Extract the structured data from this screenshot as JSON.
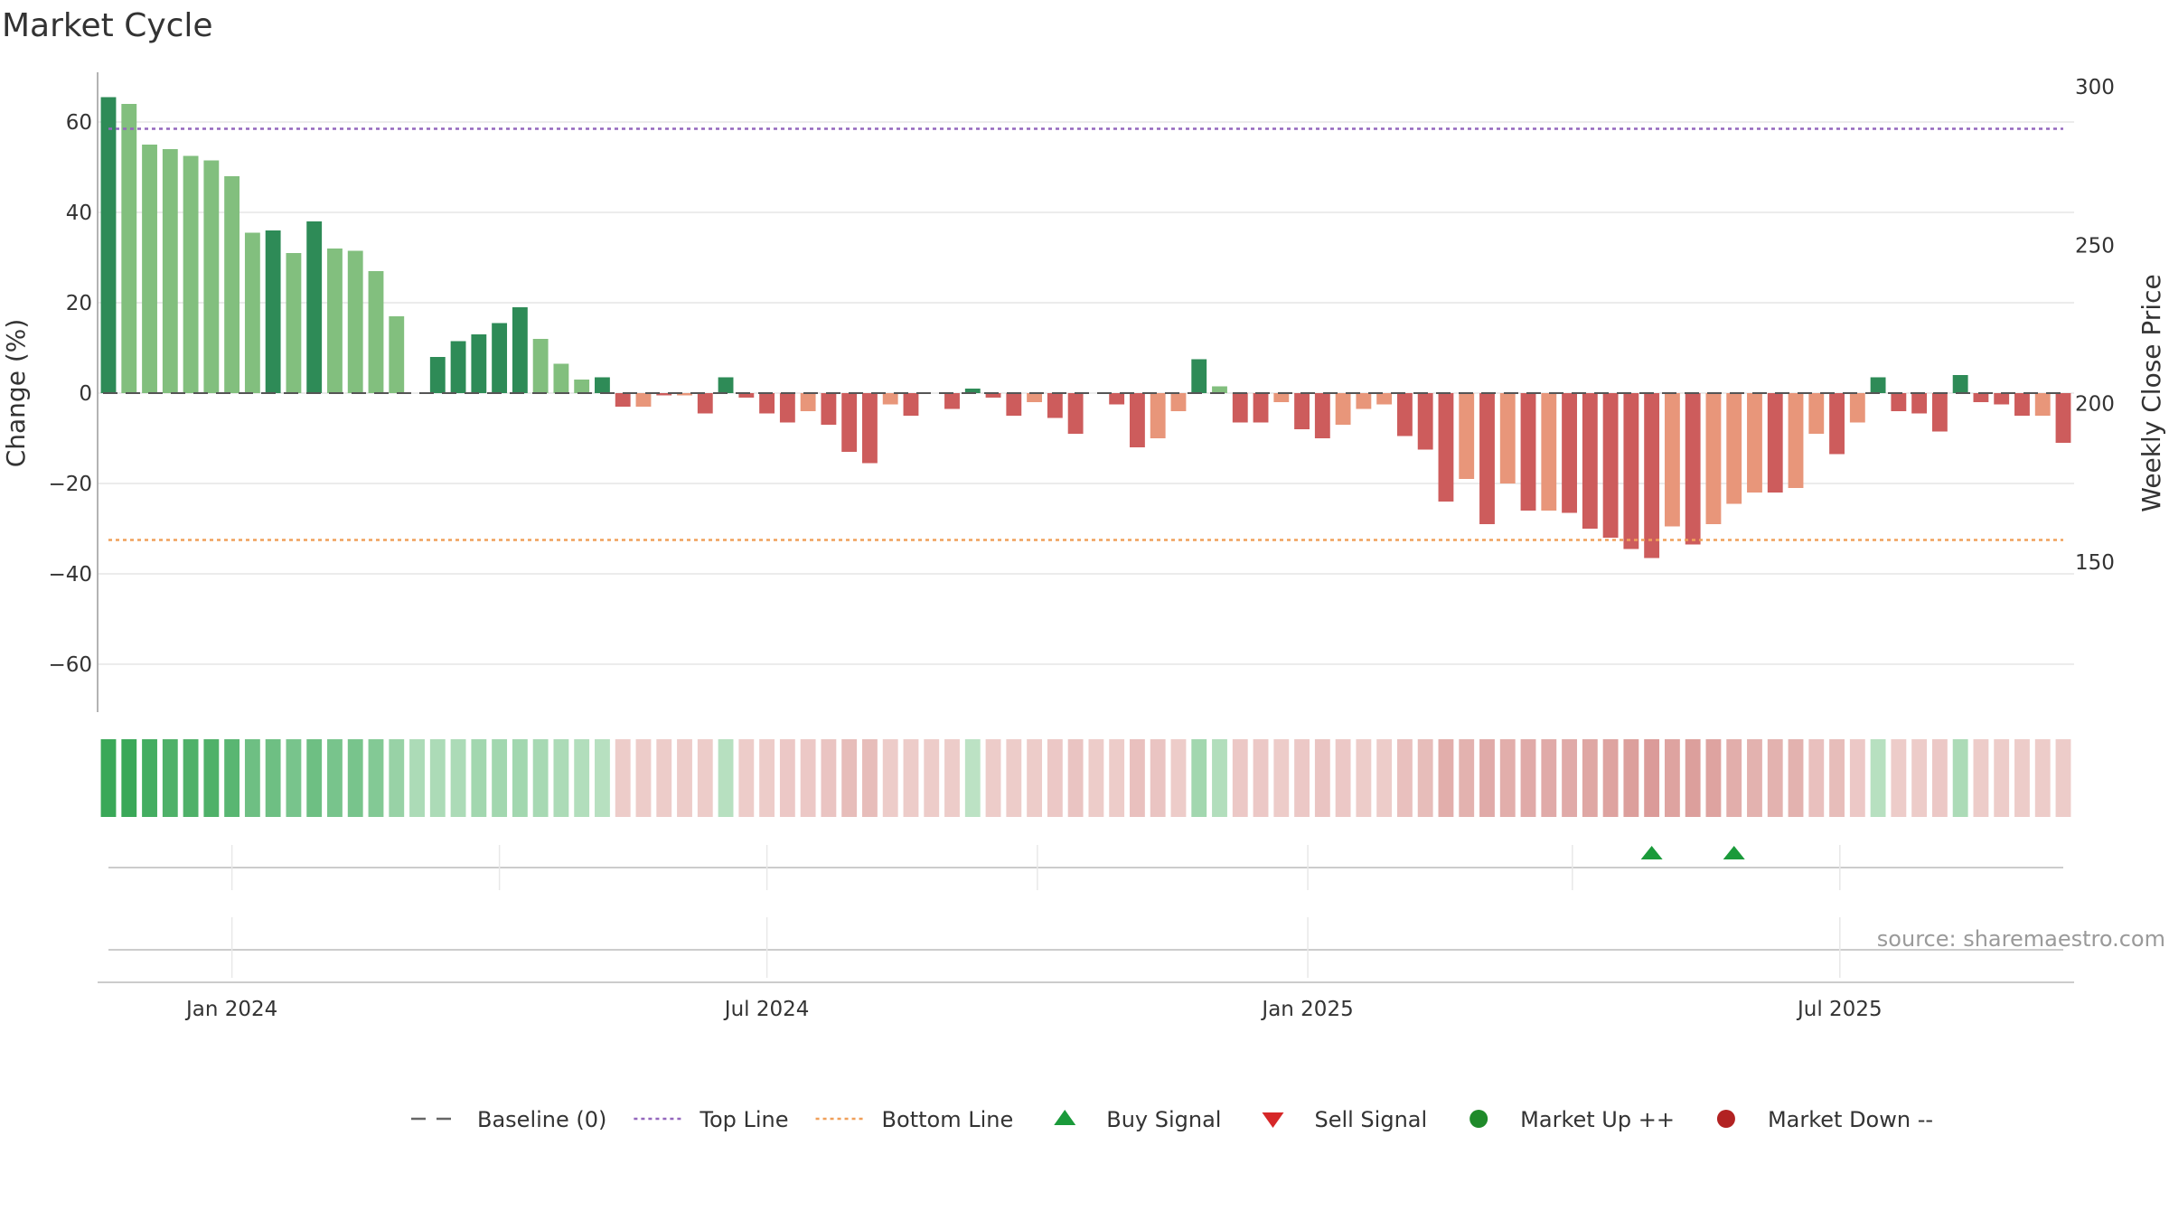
{
  "title": "Market Cycle",
  "source": "source: sharemaestro.com",
  "legend": [
    {
      "label": "Baseline (0)",
      "symbol": "dash",
      "color": "#666666"
    },
    {
      "label": "Top Line",
      "symbol": "dot",
      "color": "#9467bd"
    },
    {
      "label": "Bottom Line",
      "symbol": "dot",
      "color": "#f0a05a"
    },
    {
      "label": "Buy Signal",
      "symbol": "triangle-up",
      "color": "#1a9a3a"
    },
    {
      "label": "Sell Signal",
      "symbol": "triangle-down",
      "color": "#d62728"
    },
    {
      "label": "Market Up ++",
      "symbol": "circle",
      "color": "#1f8a2a"
    },
    {
      "label": "Market Down --",
      "symbol": "circle",
      "color": "#b22222"
    }
  ],
  "chart_data": {
    "type": "bar",
    "ylabel": "Change (%)",
    "y2label": "Weekly Close Price",
    "ylim": [
      -71,
      71
    ],
    "yticks": [
      60,
      40,
      20,
      0,
      -20,
      -40,
      -60
    ],
    "ytick_labels": [
      "60",
      "40",
      "20",
      "0",
      "−20",
      "−40",
      "−60"
    ],
    "y2lim": [
      105,
      311
    ],
    "y2ticks": [
      300,
      250,
      200,
      150
    ],
    "top_line": 58.5,
    "bottom_line": -32.5,
    "grid": true,
    "x_start": "2023-11-20",
    "x_interval_days": 7,
    "xticks": [
      {
        "date": "2024-01-01",
        "label": "Jan 2024"
      },
      {
        "date": "2024-07-01",
        "label": "Jul 2024"
      },
      {
        "date": "2025-01-01",
        "label": "Jan 2025"
      },
      {
        "date": "2025-07-01",
        "label": "Jul 2025"
      }
    ],
    "minor_gridlines": [
      "2024-04-01",
      "2024-10-01",
      "2025-04-01"
    ],
    "values": [
      65.5,
      64,
      55,
      54,
      52.5,
      51.5,
      48,
      35.5,
      36,
      31,
      38,
      32,
      31.5,
      27,
      17,
      0,
      8,
      11.5,
      13,
      15.5,
      19,
      12,
      6.5,
      3,
      3.5,
      -3,
      -3,
      -0.5,
      -0.5,
      -4.5,
      3.5,
      -1,
      -4.5,
      -6.5,
      -4,
      -7,
      -13,
      -15.5,
      -2.5,
      -5,
      0,
      -3.5,
      1,
      -1,
      -5,
      -2,
      -5.5,
      -9,
      0,
      -2.5,
      -12,
      -10,
      -4,
      7.5,
      1.5,
      -6.5,
      -6.5,
      -2,
      -8,
      -10,
      -7,
      -3.5,
      -2.5,
      -9.5,
      -12.5,
      -24,
      -19,
      -29,
      -20,
      -26,
      -26,
      -26.5,
      -30,
      -32,
      -34.5,
      -36.5,
      -29.5,
      -33.5,
      -29,
      -24.5,
      -22,
      -22,
      -21,
      -9,
      -13.5,
      -6.5,
      3.5,
      -4,
      -4.5,
      -8.5,
      4,
      -2,
      -2.5,
      -5,
      -5,
      -11
    ],
    "bar_shades": [
      0,
      1,
      1,
      1,
      1,
      1,
      1,
      1,
      0,
      1,
      0,
      1,
      1,
      1,
      1,
      0,
      0,
      0,
      0,
      0,
      0,
      1,
      1,
      1,
      0,
      0,
      1,
      0,
      1,
      0,
      0,
      0,
      0,
      0,
      1,
      0,
      0,
      0,
      1,
      0,
      0,
      0,
      0,
      0,
      0,
      1,
      0,
      0,
      0,
      0,
      0,
      1,
      1,
      0,
      1,
      0,
      0,
      1,
      0,
      0,
      1,
      1,
      1,
      0,
      0,
      0,
      1,
      0,
      1,
      0,
      1,
      0,
      0,
      0,
      0,
      0,
      1,
      0,
      1,
      1,
      1,
      0,
      1,
      1,
      0,
      1,
      0,
      0,
      0,
      0,
      0,
      0,
      0,
      0,
      1,
      0
    ],
    "heat_strip": [
      3,
      3,
      2.8,
      2.6,
      2.6,
      2.6,
      2.4,
      2,
      2,
      1.8,
      2,
      1.8,
      1.8,
      1.6,
      1.2,
      0.8,
      0.8,
      0.8,
      1,
      1,
      1,
      0.9,
      0.8,
      0.7,
      0.6,
      -0.5,
      -0.5,
      -0.5,
      -0.5,
      -0.5,
      0.6,
      -0.5,
      -0.5,
      -0.6,
      -0.6,
      -0.7,
      -0.9,
      -0.9,
      -0.5,
      -0.5,
      -0.5,
      -0.5,
      0.5,
      -0.5,
      -0.5,
      -0.5,
      -0.6,
      -0.7,
      -0.5,
      -0.5,
      -0.8,
      -0.7,
      -0.5,
      1,
      0.7,
      -0.6,
      -0.6,
      -0.5,
      -0.6,
      -0.7,
      -0.6,
      -0.5,
      -0.5,
      -0.8,
      -0.9,
      -1.3,
      -1.2,
      -1.4,
      -1.3,
      -1.4,
      -1.4,
      -1.4,
      -1.5,
      -1.6,
      -1.7,
      -1.8,
      -1.6,
      -1.7,
      -1.6,
      -1.3,
      -1.2,
      -1.2,
      -1.2,
      -0.8,
      -0.9,
      -0.6,
      0.6,
      -0.5,
      -0.5,
      -0.6,
      0.8,
      -0.5,
      -0.5,
      -0.5,
      -0.5,
      -0.5
    ],
    "buy_signals": [
      "2025-04-28",
      "2025-05-26"
    ],
    "sell_signals": []
  }
}
